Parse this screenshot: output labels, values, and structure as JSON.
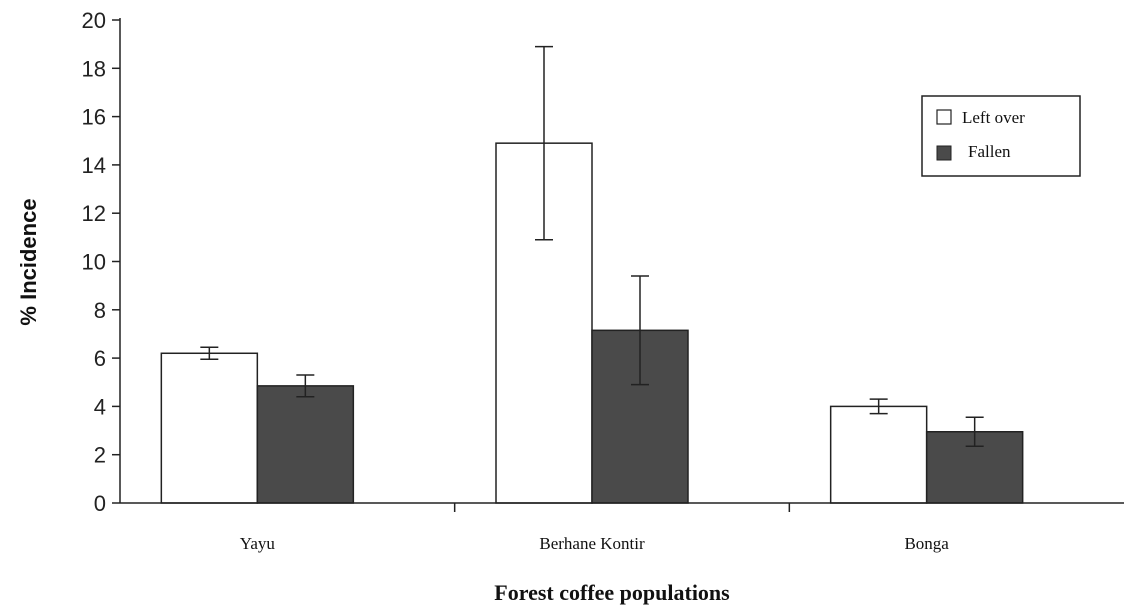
{
  "chart_data": {
    "type": "bar",
    "title": "",
    "xlabel": "Forest coffee populations",
    "ylabel": "% Incidence",
    "categories": [
      "Yayu",
      "Berhane Kontir",
      "Bonga"
    ],
    "ylim": [
      0,
      20
    ],
    "yticks": [
      "0",
      "2",
      "4",
      "6",
      "8",
      "10",
      "12",
      "14",
      "16",
      "18",
      "20"
    ],
    "grid": false,
    "legend_position": "top-right",
    "series": [
      {
        "name": "Left over",
        "color": "#ffffff",
        "values": [
          6.2,
          14.9,
          4.0
        ],
        "error": [
          0.25,
          4.0,
          0.3
        ]
      },
      {
        "name": "Fallen",
        "color": "#4a4a4a",
        "values": [
          4.85,
          7.15,
          2.95
        ],
        "error": [
          0.45,
          2.25,
          0.6
        ]
      }
    ]
  }
}
